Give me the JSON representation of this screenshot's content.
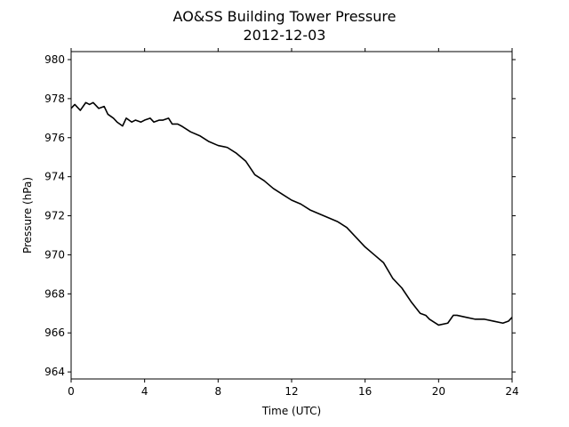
{
  "chart_data": {
    "type": "line",
    "title": "AO&SS Building Tower Pressure",
    "subtitle": "2012-12-03",
    "x_label": "Time (UTC)",
    "y_label": "Pressure (hPa)",
    "x": [
      0,
      0.2,
      0.5,
      0.8,
      1.0,
      1.2,
      1.5,
      1.8,
      2.0,
      2.3,
      2.5,
      2.8,
      3.0,
      3.3,
      3.5,
      3.8,
      4.0,
      4.3,
      4.5,
      4.8,
      5.0,
      5.3,
      5.5,
      5.8,
      6.0,
      6.5,
      7.0,
      7.5,
      8.0,
      8.5,
      9.0,
      9.5,
      10.0,
      10.5,
      11.0,
      11.5,
      12.0,
      12.5,
      13.0,
      13.5,
      14.0,
      14.5,
      15.0,
      15.5,
      16.0,
      16.5,
      17.0,
      17.5,
      18.0,
      18.5,
      19.0,
      19.3,
      19.5,
      20.0,
      20.5,
      20.8,
      21.0,
      21.5,
      22.0,
      22.5,
      23.0,
      23.5,
      23.8,
      24.0
    ],
    "series": [
      {
        "name": "Pressure",
        "color": "#000000",
        "values": [
          977.5,
          977.7,
          977.4,
          977.8,
          977.7,
          977.8,
          977.5,
          977.6,
          977.2,
          977.0,
          976.8,
          976.6,
          977.0,
          976.8,
          976.9,
          976.8,
          976.9,
          977.0,
          976.8,
          976.9,
          976.9,
          977.0,
          976.7,
          976.7,
          976.6,
          976.3,
          976.1,
          975.8,
          975.6,
          975.5,
          975.2,
          974.8,
          974.1,
          973.8,
          973.4,
          973.1,
          972.8,
          972.6,
          972.3,
          972.1,
          971.9,
          971.7,
          971.4,
          970.9,
          970.4,
          970.0,
          969.6,
          968.8,
          968.3,
          967.6,
          967.0,
          966.9,
          966.7,
          966.4,
          966.5,
          966.9,
          966.9,
          966.8,
          966.7,
          966.7,
          966.6,
          966.5,
          966.6,
          966.8
        ]
      }
    ],
    "xlim": [
      0,
      24
    ],
    "xticks": [
      0,
      4,
      8,
      12,
      16,
      20,
      24
    ],
    "ylim": [
      963.64,
      980.41
    ],
    "yticks": [
      964,
      966,
      968,
      970,
      972,
      974,
      976,
      978,
      980
    ],
    "grid": false
  }
}
